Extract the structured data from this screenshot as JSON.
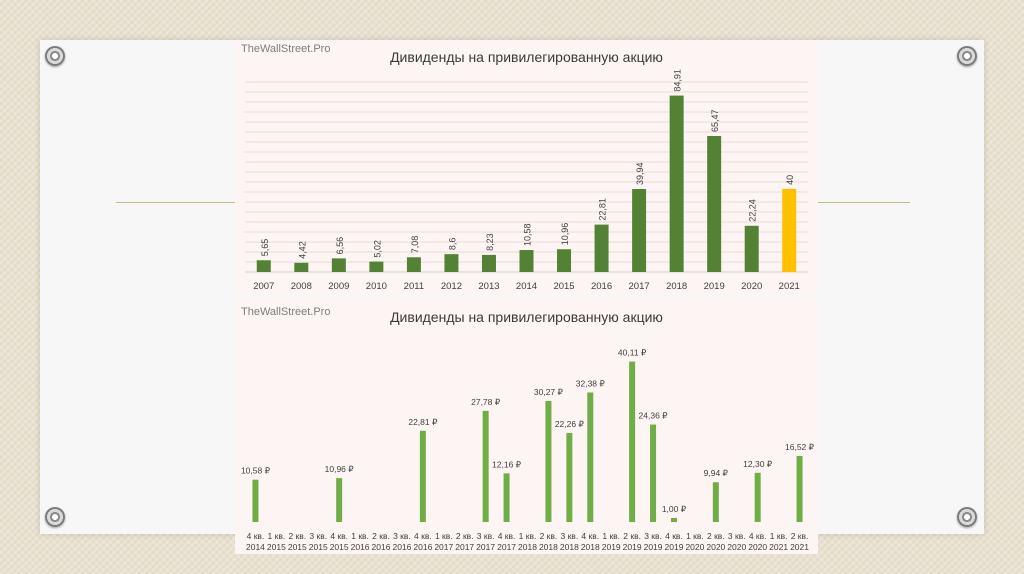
{
  "slide": {
    "colors": {
      "background": "#e9e2d1",
      "slide": "#f7f7f7",
      "panel": "#fdf5f3",
      "accent_line": "#c9b98a"
    }
  },
  "chart_data": [
    {
      "type": "bar",
      "title": "Дивиденды на привилегированную акцию",
      "watermark": "TheWallStreet.Pro",
      "categories": [
        "2007",
        "2008",
        "2009",
        "2010",
        "2011",
        "2012",
        "2013",
        "2014",
        "2015",
        "2016",
        "2017",
        "2018",
        "2019",
        "2020",
        "2021"
      ],
      "values": [
        5.65,
        4.42,
        6.56,
        5.02,
        7.08,
        8.6,
        8.23,
        10.58,
        10.96,
        22.81,
        39.94,
        84.91,
        65.47,
        22.24,
        40
      ],
      "labels": [
        "5,65",
        "4,42",
        "6,56",
        "5,02",
        "7,08",
        "8,6",
        "8,23",
        "10,58",
        "10,96",
        "22,81",
        "39,94",
        "84,91",
        "65,47",
        "22,24",
        "40"
      ],
      "highlight_index": 14,
      "colors": {
        "bar": "#548235",
        "highlight": "#ffc000",
        "grid": "#ead9d5"
      },
      "ylim": [
        0,
        90
      ],
      "grid": true,
      "xlabel": "",
      "ylabel": ""
    },
    {
      "type": "bar",
      "title": "Дивиденды на привилегированную акцию",
      "watermark": "TheWallStreet.Pro",
      "categories": [
        {
          "q": "4 кв.",
          "y": "2014"
        },
        {
          "q": "1 кв.",
          "y": "2015"
        },
        {
          "q": "2 кв.",
          "y": "2015"
        },
        {
          "q": "3 кв.",
          "y": "2015"
        },
        {
          "q": "4 кв.",
          "y": "2015"
        },
        {
          "q": "1 кв.",
          "y": "2016"
        },
        {
          "q": "2 кв.",
          "y": "2016"
        },
        {
          "q": "3 кв.",
          "y": "2016"
        },
        {
          "q": "4 кв.",
          "y": "2016"
        },
        {
          "q": "1 кв.",
          "y": "2017"
        },
        {
          "q": "2 кв.",
          "y": "2017"
        },
        {
          "q": "3 кв.",
          "y": "2017"
        },
        {
          "q": "4 кв.",
          "y": "2017"
        },
        {
          "q": "1 кв.",
          "y": "2018"
        },
        {
          "q": "2 кв.",
          "y": "2018"
        },
        {
          "q": "3 кв.",
          "y": "2018"
        },
        {
          "q": "4 кв.",
          "y": "2018"
        },
        {
          "q": "1 кв.",
          "y": "2019"
        },
        {
          "q": "2 кв.",
          "y": "2019"
        },
        {
          "q": "3 кв.",
          "y": "2019"
        },
        {
          "q": "4 кв.",
          "y": "2019"
        },
        {
          "q": "1 кв.",
          "y": "2020"
        },
        {
          "q": "2 кв.",
          "y": "2020"
        },
        {
          "q": "3 кв.",
          "y": "2020"
        },
        {
          "q": "4 кв.",
          "y": "2020"
        },
        {
          "q": "1 кв.",
          "y": "2021"
        },
        {
          "q": "2 кв.",
          "y": "2021"
        }
      ],
      "values": [
        10.58,
        0,
        0,
        0,
        10.96,
        0,
        0,
        0,
        22.81,
        0,
        0,
        27.78,
        12.16,
        0,
        30.27,
        22.26,
        32.38,
        0,
        40.11,
        24.36,
        1.0,
        0,
        9.94,
        0,
        12.3,
        0,
        16.52
      ],
      "labels": [
        "10,58 ₽",
        "",
        "",
        "",
        "10,96 ₽",
        "",
        "",
        "",
        "22,81 ₽",
        "",
        "",
        "27,78 ₽",
        "12,16 ₽",
        "",
        "30,27 ₽",
        "22,26 ₽",
        "32,38 ₽",
        "",
        "40,11 ₽",
        "24,36 ₽",
        "1,00 ₽",
        "",
        "9,94 ₽",
        "",
        "12,30 ₽",
        "",
        "16,52 ₽"
      ],
      "colors": {
        "bar": "#70ad47"
      },
      "ylim": [
        0,
        41
      ],
      "grid": false,
      "xlabel": "",
      "ylabel": ""
    }
  ]
}
